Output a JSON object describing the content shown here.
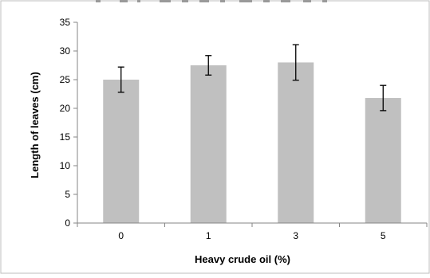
{
  "chart_data": {
    "type": "bar",
    "categories": [
      "0",
      "1",
      "3",
      "5"
    ],
    "values": [
      25,
      27.5,
      28,
      21.8
    ],
    "errors": [
      2.2,
      1.7,
      3.1,
      2.2
    ],
    "title": "",
    "xlabel": "Heavy crude oil (%)",
    "ylabel": "Length of leaves (cm)",
    "ylim": [
      0,
      35
    ],
    "yticks": [
      "0",
      "5",
      "10",
      "15",
      "20",
      "25",
      "30",
      "35"
    ],
    "grid": false,
    "legend": "none",
    "bar_color": "#c0c0c0",
    "error_bar_color": "#000000",
    "axis_color": "#868686"
  }
}
